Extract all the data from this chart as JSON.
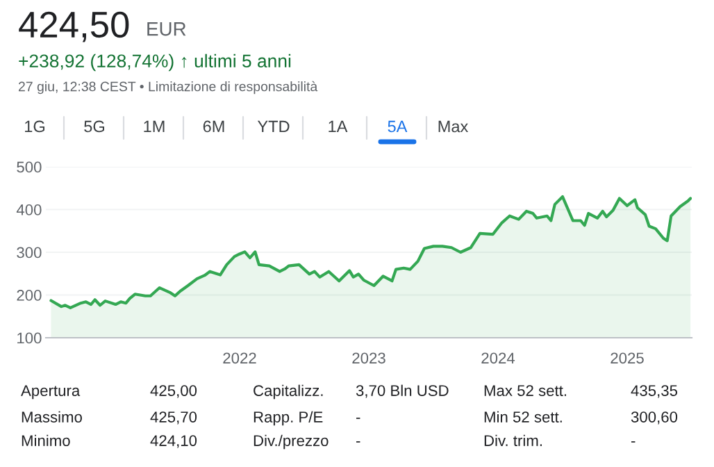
{
  "chart_data": {
    "type": "area",
    "title": "424,50",
    "subtitle": "+238,92 (128,74%) ↑ ultimi 5 anni",
    "annotations": [
      "EUR",
      "27 giu, 12:38 CEST • Limitazione di responsabilità",
      "1G",
      "5G",
      "1M",
      "6M",
      "YTD",
      "1A",
      "5A",
      "Max",
      "Apertura",
      "425,00",
      "Capitalizz.",
      "3,70 Bln USD",
      "Max 52 sett.",
      "435,35",
      "Massimo",
      "425,70",
      "Rapp. P/E",
      "-",
      "Min 52 sett.",
      "300,60",
      "Minimo",
      "424,10",
      "Div./prezzo",
      "-",
      "Div. trim.",
      "-"
    ],
    "x": [
      2020.54,
      2020.62,
      2020.65,
      2020.69,
      2020.77,
      2020.81,
      2020.85,
      2020.88,
      2020.92,
      2020.96,
      2021.04,
      2021.08,
      2021.12,
      2021.15,
      2021.19,
      2021.27,
      2021.31,
      2021.38,
      2021.46,
      2021.5,
      2021.54,
      2021.6,
      2021.67,
      2021.73,
      2021.77,
      2021.85,
      2021.9,
      2021.96,
      2022,
      2022.04,
      2022.08,
      2022.12,
      2022.15,
      2022.23,
      2022.31,
      2022.35,
      2022.38,
      2022.46,
      2022.54,
      2022.58,
      2022.62,
      2022.69,
      2022.77,
      2022.85,
      2022.88,
      2022.92,
      2022.96,
      2023.04,
      2023.11,
      2023.18,
      2023.21,
      2023.27,
      2023.32,
      2023.38,
      2023.43,
      2023.5,
      2023.57,
      2023.64,
      2023.71,
      2023.79,
      2023.86,
      2023.96,
      2024.03,
      2024.09,
      2024.16,
      2024.22,
      2024.27,
      2024.3,
      2024.38,
      2024.41,
      2024.44,
      2024.5,
      2024.58,
      2024.64,
      2024.67,
      2024.7,
      2024.77,
      2024.81,
      2024.84,
      2024.89,
      2024.94,
      2025,
      2025.06,
      2025.08,
      2025.14,
      2025.17,
      2025.22,
      2025.28,
      2025.31,
      2025.34,
      2025.41,
      2025.47,
      2025.49
    ],
    "series": [
      {
        "color": "#34a853",
        "values": [
          187,
          173,
          176,
          170,
          181,
          184,
          178,
          189,
          176,
          186,
          178,
          184,
          181,
          192,
          202,
          198,
          198,
          217,
          206,
          198,
          209,
          222,
          238,
          246,
          255,
          247,
          271,
          290,
          296,
          301,
          287,
          301,
          271,
          268,
          255,
          261,
          268,
          271,
          249,
          255,
          242,
          255,
          233,
          257,
          242,
          249,
          235,
          222,
          244,
          233,
          260,
          263,
          260,
          279,
          309,
          314,
          314,
          311,
          300,
          311,
          344,
          342,
          369,
          385,
          377,
          396,
          391,
          380,
          385,
          374,
          412,
          430,
          374,
          374,
          363,
          391,
          380,
          396,
          383,
          398,
          426,
          409,
          423,
          404,
          388,
          361,
          355,
          333,
          327,
          385,
          407,
          420,
          426
        ]
      }
    ],
    "xlim": [
      2020.5,
      2025.5
    ],
    "xticks": [
      2022,
      2023,
      2024,
      2025
    ],
    "ylim": [
      100,
      500
    ],
    "yticks": [
      100,
      200,
      300,
      400,
      500
    ],
    "grid": "y",
    "legend": false
  }
}
